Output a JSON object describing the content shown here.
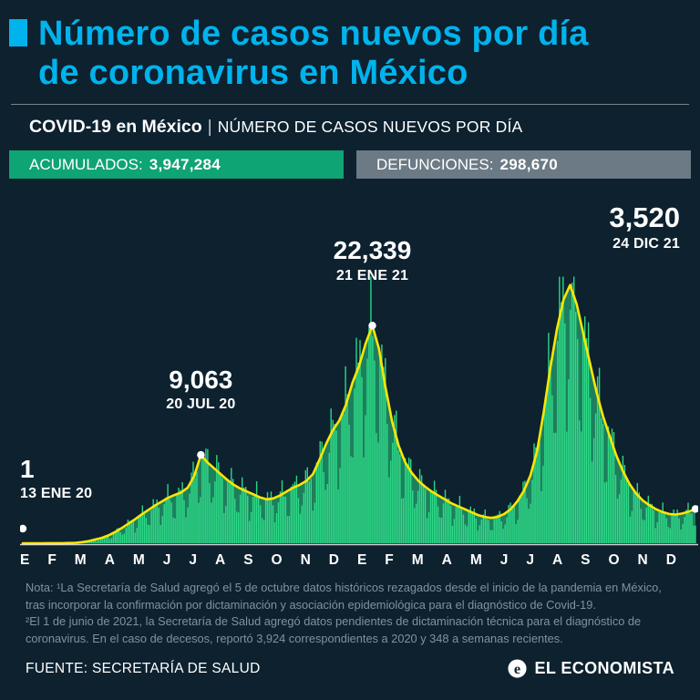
{
  "theme": {
    "background": "#0d212f",
    "cyan": "#00b3ec",
    "badge_green": "#0ea474",
    "badge_gray": "#6b7a85",
    "note_gray": "#7e93a0"
  },
  "header": {
    "title_line1": "Número de casos nuevos por día",
    "title_line2": "de coronavirus en México"
  },
  "subheader": {
    "bold": "COVID-19 en México",
    "separator": "|",
    "rest": "NÚMERO DE CASOS NUEVOS POR DÍA"
  },
  "stats": {
    "accumulated_label": "ACUMULADOS:",
    "accumulated_value": "3,947,284",
    "deaths_label": "DEFUNCIONES:",
    "deaths_value": "298,670"
  },
  "chart_data": {
    "type": "bar",
    "title": "Número de casos nuevos por día de coronavirus en México",
    "xlabel": "",
    "ylabel": "Casos nuevos por día",
    "x_unit": "week",
    "x_start": "13 ENE 20",
    "x_end": "24 DIC 21",
    "ylim": [
      0,
      27500
    ],
    "grid": false,
    "legend": "none",
    "colors": {
      "bars": "#2ee08b",
      "line": "#ffe600",
      "dots": "#ffffff"
    },
    "month_labels": [
      "E",
      "F",
      "M",
      "A",
      "M",
      "J",
      "J",
      "A",
      "S",
      "O",
      "N",
      "D",
      "E",
      "F",
      "M",
      "A",
      "M",
      "J",
      "J",
      "A",
      "S",
      "O",
      "N",
      "D"
    ],
    "values": [
      1,
      2,
      3,
      4,
      6,
      8,
      12,
      25,
      50,
      110,
      220,
      380,
      550,
      800,
      1150,
      1550,
      2000,
      2450,
      2950,
      3400,
      3850,
      4250,
      4650,
      4950,
      5200,
      5700,
      6900,
      9063,
      8300,
      7700,
      7100,
      6500,
      6000,
      5600,
      5300,
      5000,
      4700,
      4500,
      4600,
      4900,
      5300,
      5700,
      6000,
      6400,
      7100,
      8600,
      10200,
      11600,
      12600,
      14200,
      16500,
      18200,
      20500,
      22339,
      20000,
      16000,
      12500,
      10000,
      8300,
      7200,
      6400,
      5800,
      5300,
      4900,
      4500,
      4100,
      3800,
      3500,
      3200,
      2900,
      2700,
      2600,
      2700,
      3000,
      3500,
      4300,
      5400,
      7000,
      9500,
      13500,
      18000,
      22000,
      25000,
      26500,
      24500,
      21500,
      18500,
      15500,
      13000,
      11000,
      9000,
      7400,
      6100,
      5100,
      4400,
      3900,
      3500,
      3200,
      3000,
      2950,
      3050,
      3250,
      3520
    ],
    "annotations": [
      {
        "value_label": "1",
        "date_label": "13 ENE 20",
        "index": 0
      },
      {
        "value_label": "9,063",
        "date_label": "20 JUL 20",
        "index": 27
      },
      {
        "value_label": "22,339",
        "date_label": "21 ENE 21",
        "index": 53
      },
      {
        "value_label": "3,520",
        "date_label": "24 DIC 21",
        "index": 102
      }
    ]
  },
  "notes": {
    "part1": "Nota: ¹La Secretaría de Salud agregó el 5 de octubre datos históricos rezagados desde el inicio de la pandemia en México, tras incorporar la confirmación por dictaminación y asociación epidemiológica para el diagnóstico de Covid-19.",
    "part2": "²El 1 de junio de 2021, la Secretaría de Salud agregó datos pendientes de dictaminación técnica para el diagnóstico de coronavirus. En el caso de decesos, reportó 3,924 correspondientes a 2020 y 348 a semanas recientes."
  },
  "footer": {
    "source": "FUENTE: SECRETARÍA DE SALUD",
    "brand": "EL ECONOMISTA"
  }
}
